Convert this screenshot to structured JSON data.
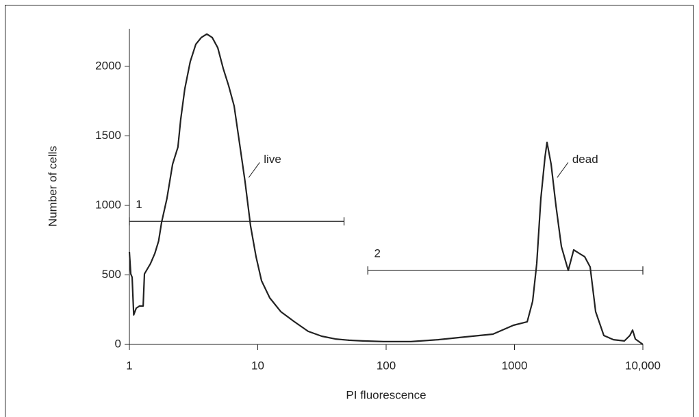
{
  "chart_data": {
    "type": "line",
    "xlabel": "PI fluorescence",
    "ylabel": "Number of cells",
    "xscale": "log",
    "xlim": [
      1,
      10000
    ],
    "ylim": [
      0,
      2270
    ],
    "xticks": [
      1,
      10,
      100,
      1000,
      {
        "value": 10000,
        "label": "10,000"
      }
    ],
    "yticks": [
      0,
      500,
      1000,
      1500,
      2000
    ],
    "x": [
      1,
      1.025,
      1.05,
      1.08,
      1.13,
      1.2,
      1.28,
      1.31,
      1.46,
      1.58,
      1.69,
      1.78,
      1.96,
      2.17,
      2.39,
      2.51,
      2.7,
      2.98,
      3.29,
      3.63,
      4.01,
      4.42,
      4.88,
      5.38,
      5.93,
      6.55,
      7.22,
      7.96,
      8.79,
      9.7,
      10.7,
      12.4,
      15.1,
      19.3,
      24.7,
      31.5,
      40.3,
      51.5,
      65.9,
      95.2,
      156,
      254,
      415,
      679,
      982,
      1256,
      1385,
      1490,
      1605,
      1728,
      1792,
      1928,
      2102,
      2319,
      2622,
      2893,
      3192,
      3522,
      3884,
      4285,
      4966,
      5902,
      7178,
      7920,
      8318,
      8735,
      10000
    ],
    "series": [
      {
        "color": "#111111",
        "values": [
          665,
          507,
          483,
          212,
          261,
          276,
          276,
          507,
          581,
          655,
          744,
          877,
          1049,
          1296,
          1419,
          1616,
          1837,
          2034,
          2158,
          2207,
          2232,
          2207,
          2133,
          1985,
          1862,
          1714,
          1443,
          1172,
          852,
          631,
          458,
          335,
          236,
          163,
          94,
          59,
          39,
          30,
          25,
          20,
          20,
          34,
          54,
          74,
          138,
          163,
          310,
          581,
          1049,
          1345,
          1453,
          1296,
          1000,
          704,
          532,
          680,
          655,
          631,
          557,
          236,
          64,
          34,
          25,
          64,
          103,
          39,
          0
        ]
      }
    ],
    "gates": [
      {
        "label": "1",
        "x": [
          1,
          47
        ],
        "y": 885
      },
      {
        "label": "2",
        "x": [
          72,
          10000
        ],
        "y": 532
      }
    ],
    "annotations": [
      {
        "text": "live",
        "x": 8.5,
        "y": 1200
      },
      {
        "text": "dead",
        "x": 2150,
        "y": 1200
      }
    ]
  }
}
